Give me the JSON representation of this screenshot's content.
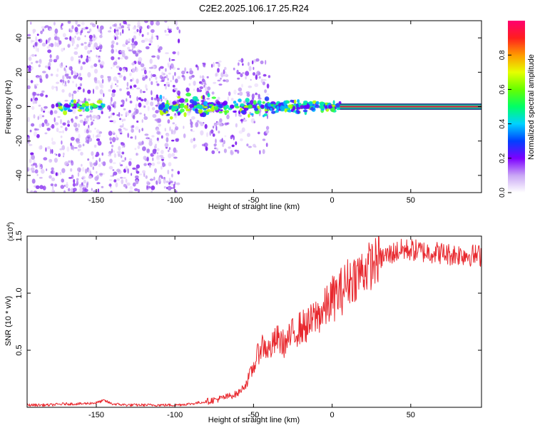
{
  "title": "C2E2.2025.106.17.25.R24",
  "colors": {
    "line": "#e8282e",
    "spectrogram_low": "#8a2be2",
    "spectrogram_high": "#ff1e3c",
    "center_band": "#d8263a"
  },
  "chart_data": [
    {
      "type": "heatmap",
      "title": "C2E2.2025.106.17.25.R24",
      "xlabel": "Height of straight line (km)",
      "ylabel": "Frequency (Hz)",
      "xlim": [
        -194,
        95
      ],
      "ylim": [
        -50,
        50
      ],
      "x_ticks": [
        "-150",
        "-100",
        "-50",
        "0",
        "50"
      ],
      "x_tick_values": [
        -150,
        -100,
        -50,
        0,
        50
      ],
      "y_ticks": [
        "-40",
        "-20",
        "0",
        "20",
        "40"
      ],
      "y_tick_values": [
        -40,
        -20,
        0,
        20,
        40
      ],
      "colorbar": {
        "label": "Normalized spectral amplitude",
        "range": [
          0,
          1
        ],
        "ticks": [
          "0.0",
          "0.2",
          "0.4",
          "0.6",
          "0.8"
        ],
        "tick_values": [
          0,
          0.2,
          0.4,
          0.6,
          0.8
        ]
      },
      "features": {
        "center_band_frequency_hz": 0,
        "strong_band_start_km": 5,
        "strong_band_end_km": 95,
        "scatter_regions_km": [
          [
            -194,
            -145
          ],
          [
            -142,
            -97
          ],
          [
            -95,
            -40
          ]
        ],
        "empty_gap_km": [
          -150,
          -140
        ]
      }
    },
    {
      "type": "line",
      "xlabel": "Height of straight line (km)",
      "ylabel": "SNR (10 * v/v)",
      "y_scale_label": "(x10",
      "y_scale_exponent": "4",
      "xlim": [
        -194,
        95
      ],
      "ylim": [
        0,
        1.5
      ],
      "x_ticks": [
        "-150",
        "-100",
        "-50",
        "0",
        "50"
      ],
      "x_tick_values": [
        -150,
        -100,
        -50,
        0,
        50
      ],
      "y_ticks": [
        "0.5",
        "1.0",
        "1.5"
      ],
      "y_tick_values": [
        0.5,
        1.0,
        1.5
      ],
      "series": [
        {
          "x": [
            -194,
            -180,
            -170,
            -160,
            -150,
            -145,
            -140,
            -130,
            -120,
            -110,
            -100,
            -90,
            -80,
            -70,
            -60,
            -55,
            -50,
            -45,
            -40,
            -35,
            -30,
            -25,
            -20,
            -15,
            -10,
            -5,
            0,
            5,
            10,
            15,
            20,
            25,
            30,
            35,
            40,
            45,
            50,
            55,
            60,
            65,
            70,
            75,
            80,
            85,
            90,
            95
          ],
          "y": [
            0.02,
            0.02,
            0.03,
            0.03,
            0.04,
            0.06,
            0.03,
            0.02,
            0.02,
            0.02,
            0.02,
            0.03,
            0.05,
            0.08,
            0.12,
            0.2,
            0.35,
            0.55,
            0.5,
            0.6,
            0.55,
            0.65,
            0.7,
            0.72,
            0.8,
            0.85,
            0.95,
            1.0,
            1.1,
            1.15,
            1.2,
            1.25,
            1.3,
            1.33,
            1.36,
            1.38,
            1.38,
            1.37,
            1.36,
            1.36,
            1.35,
            1.34,
            1.34,
            1.34,
            1.33,
            1.33
          ]
        }
      ]
    }
  ]
}
